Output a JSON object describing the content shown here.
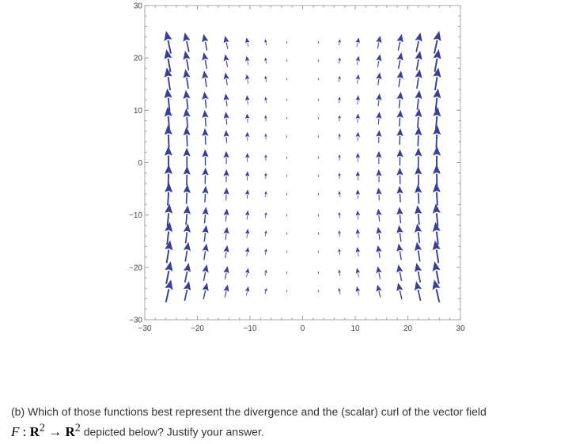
{
  "chart_data": {
    "type": "vector-field",
    "xlim": [
      -30,
      30
    ],
    "ylim": [
      -30,
      30
    ],
    "x_ticks": [
      -30,
      -20,
      -10,
      0,
      10,
      20,
      30
    ],
    "y_ticks": [
      -30,
      -20,
      -10,
      0,
      10,
      20,
      30
    ],
    "x_tick_labels": [
      "−30",
      "−20",
      "−10",
      "0",
      "10",
      "20",
      "30"
    ],
    "y_tick_labels": [
      "−30",
      "−20",
      "−10",
      "0",
      "10",
      "20",
      "30"
    ],
    "grid_x": [
      -25.5,
      -22.0,
      -18.5,
      -14.5,
      -10.5,
      -7.0,
      -3.0,
      3.0,
      7.0,
      10.5,
      14.5,
      18.5,
      22.0,
      25.5
    ],
    "grid_y": [
      23,
      19.5,
      16,
      12,
      8.5,
      5,
      1,
      -2.5,
      -6,
      -10,
      -13.5,
      -17,
      -21,
      -24.5
    ],
    "field_description": "arrows point mostly upward; magnitude grows with distance from x = 0; tilt away from centre at top, toward centre at bottom",
    "arrow_color": "#3b3f8c",
    "grid": false
  },
  "question": {
    "text": "(b)  Which of those functions best represent the divergence and the (scalar) curl of the vector field",
    "math_F": "F",
    "math_colon": " : ",
    "math_R1": "R",
    "math_sup1": "2",
    "math_arrow": " → ",
    "math_R2": "R",
    "math_sup2": "2",
    "text2": "  depicted below? Justify your answer."
  }
}
